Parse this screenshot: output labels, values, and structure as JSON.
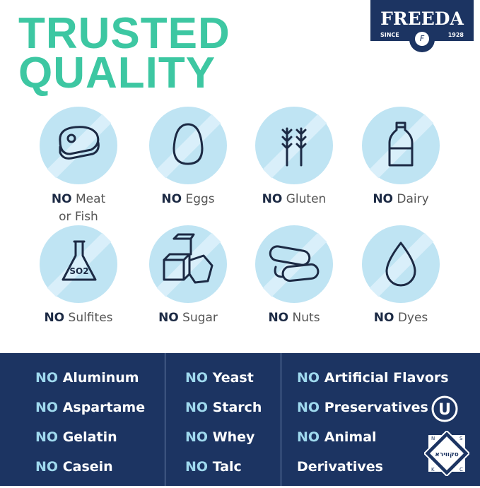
{
  "title": {
    "line1": "TRUSTED",
    "line2": "QUALITY"
  },
  "logo": {
    "brand": "FREEDA",
    "since": "SINCE",
    "year": "1928",
    "mark": "F"
  },
  "colors": {
    "title": "#3dc7a2",
    "navy": "#1c3462",
    "circle": "#bfe4f3"
  },
  "icons": [
    {
      "icon": "steak-icon",
      "no": "NO",
      "label": "Meat",
      "label2": "or Fish"
    },
    {
      "icon": "egg-icon",
      "no": "NO",
      "label": "Eggs"
    },
    {
      "icon": "wheat-icon",
      "no": "NO",
      "label": "Gluten"
    },
    {
      "icon": "milk-bottle-icon",
      "no": "NO",
      "label": "Dairy"
    },
    {
      "icon": "flask-icon",
      "no": "NO",
      "label": "Sulfites",
      "flask_text": "SO2"
    },
    {
      "icon": "sugar-cubes-icon",
      "no": "NO",
      "label": "Sugar"
    },
    {
      "icon": "nuts-icon",
      "no": "NO",
      "label": "Nuts"
    },
    {
      "icon": "drop-icon",
      "no": "NO",
      "label": "Dyes"
    }
  ],
  "panel": {
    "col1": [
      {
        "no": "NO",
        "t": "Aluminum"
      },
      {
        "no": "NO",
        "t": "Aspartame"
      },
      {
        "no": "NO",
        "t": "Gelatin"
      },
      {
        "no": "NO",
        "t": "Casein"
      }
    ],
    "col2": [
      {
        "no": "NO",
        "t": "Yeast"
      },
      {
        "no": "NO",
        "t": "Starch"
      },
      {
        "no": "NO",
        "t": "Whey"
      },
      {
        "no": "NO",
        "t": "Talc"
      }
    ],
    "col3": [
      {
        "no": "NO",
        "t": "Artificial Flavors"
      },
      {
        "no": "NO",
        "t": "Preservatives"
      },
      {
        "no": "NO",
        "t": "Animal"
      },
      {
        "no": "",
        "t": "Derivatives"
      }
    ],
    "ou": "U",
    "kosher": {
      "letters": [
        "N",
        "S",
        "K",
        "C"
      ]
    }
  }
}
